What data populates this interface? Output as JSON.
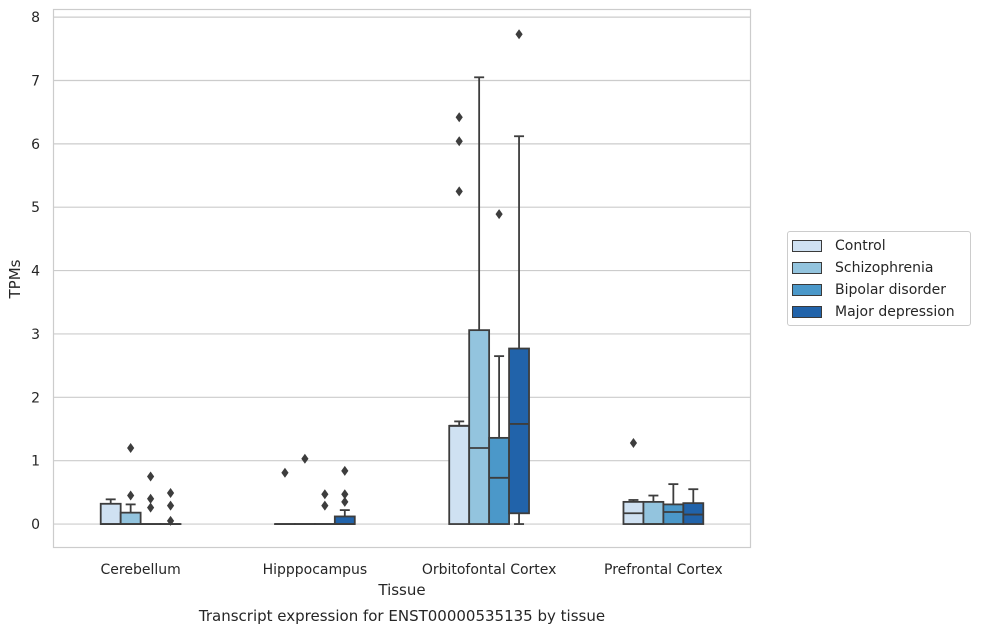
{
  "chart_data": {
    "type": "box",
    "caption": "Transcript expression for ENST00000535135 by tissue",
    "xlabel": "Tissue",
    "ylabel": "TPMs",
    "ylim": [
      -0.37,
      8.12
    ],
    "yticks": [
      0,
      1,
      2,
      3,
      4,
      5,
      6,
      7,
      8
    ],
    "ytick_labels": [
      "0",
      "1",
      "2",
      "3",
      "4",
      "5",
      "6",
      "7",
      "8"
    ],
    "grid": "horizontal",
    "legend_position": "right",
    "categories": [
      "Cerebellum",
      "Hipppocampus",
      "Orbitofontal Cortex",
      "Prefrontal Cortex"
    ],
    "series": [
      {
        "name": "Control",
        "color": "#cfe1f2",
        "boxes": [
          {
            "q1": 0,
            "median": 0,
            "q3": 0.32,
            "whisker_low": 0,
            "whisker_high": 0.39,
            "outliers": []
          },
          {
            "q1": 0,
            "median": 0,
            "q3": 0,
            "whisker_low": 0,
            "whisker_high": 0,
            "outliers": [
              0.81
            ]
          },
          {
            "q1": 0,
            "median": 1.55,
            "q3": 1.55,
            "whisker_low": 0,
            "whisker_high": 1.62,
            "outliers": [
              5.25,
              6.04,
              6.42
            ]
          },
          {
            "q1": 0,
            "median": 0.17,
            "q3": 0.35,
            "whisker_low": 0,
            "whisker_high": 0.38,
            "outliers": [
              1.28
            ]
          }
        ]
      },
      {
        "name": "Schizophrenia",
        "color": "#93c4de",
        "boxes": [
          {
            "q1": 0,
            "median": 0,
            "q3": 0.18,
            "whisker_low": 0,
            "whisker_high": 0.31,
            "outliers": [
              0.45,
              1.2
            ]
          },
          {
            "q1": 0,
            "median": 0,
            "q3": 0,
            "whisker_low": 0,
            "whisker_high": 0,
            "outliers": [
              1.03
            ]
          },
          {
            "q1": 0,
            "median": 1.2,
            "q3": 3.06,
            "whisker_low": 0,
            "whisker_high": 7.05,
            "outliers": []
          },
          {
            "q1": 0,
            "median": 0,
            "q3": 0.35,
            "whisker_low": 0,
            "whisker_high": 0.45,
            "outliers": []
          }
        ]
      },
      {
        "name": "Bipolar disorder",
        "color": "#4b98c9",
        "boxes": [
          {
            "q1": 0,
            "median": 0,
            "q3": 0,
            "whisker_low": 0,
            "whisker_high": 0,
            "outliers": [
              0.26,
              0.4,
              0.75
            ]
          },
          {
            "q1": 0,
            "median": 0,
            "q3": 0,
            "whisker_low": 0,
            "whisker_high": 0,
            "outliers": [
              0.29,
              0.47
            ]
          },
          {
            "q1": 0,
            "median": 0.73,
            "q3": 1.36,
            "whisker_low": 0,
            "whisker_high": 2.65,
            "outliers": [
              4.89
            ]
          },
          {
            "q1": 0,
            "median": 0.19,
            "q3": 0.31,
            "whisker_low": 0,
            "whisker_high": 0.63,
            "outliers": []
          }
        ]
      },
      {
        "name": "Major depression",
        "color": "#2163aa",
        "boxes": [
          {
            "q1": 0,
            "median": 0,
            "q3": 0,
            "whisker_low": 0,
            "whisker_high": 0,
            "outliers": [
              0.05,
              0.29,
              0.49
            ]
          },
          {
            "q1": 0,
            "median": 0,
            "q3": 0.12,
            "whisker_low": 0,
            "whisker_high": 0.22,
            "outliers": [
              0.35,
              0.47,
              0.84
            ]
          },
          {
            "q1": 0.17,
            "median": 1.58,
            "q3": 2.77,
            "whisker_low": 0,
            "whisker_high": 6.12,
            "outliers": [
              7.73
            ]
          },
          {
            "q1": 0,
            "median": 0.15,
            "q3": 0.33,
            "whisker_low": 0,
            "whisker_high": 0.55,
            "outliers": []
          }
        ]
      }
    ]
  }
}
